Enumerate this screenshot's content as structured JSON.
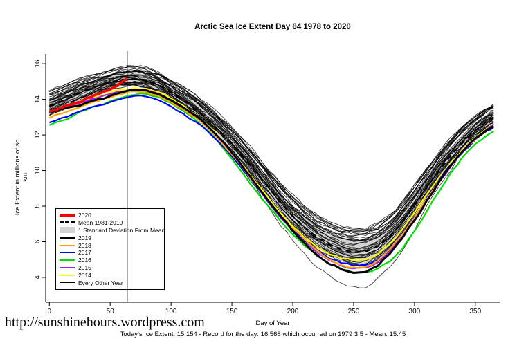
{
  "title": "Arctic Sea Ice Extent Day 64 1978 to 2020",
  "footer": {
    "url": "http://sunshinehours.wordpress.com",
    "status": "Today's Ice Extent: 15.154  - Record for the day: 16.568 which occurred on 1979 3 5  - Mean: 15.45"
  },
  "chart_data": {
    "type": "line",
    "title": "Arctic Sea Ice Extent Day 64 1978 to 2020",
    "xlabel": "Day of Year",
    "ylabel": "Ice Extent in millions of sq. km.",
    "xlim": [
      0,
      365
    ],
    "ylim": [
      2.6,
      16.55
    ],
    "x_ticks": [
      0,
      50,
      100,
      150,
      200,
      250,
      300,
      350
    ],
    "y_ticks": [
      4,
      6,
      8,
      10,
      12,
      14,
      16
    ],
    "grid": false,
    "legend_position": "inside-left-bottom",
    "marker_day": 64,
    "band_color": "#D3D3D3",
    "x": [
      0,
      10,
      20,
      30,
      40,
      50,
      60,
      70,
      80,
      90,
      100,
      110,
      120,
      130,
      140,
      150,
      160,
      170,
      180,
      190,
      200,
      210,
      220,
      230,
      240,
      250,
      260,
      270,
      280,
      290,
      300,
      310,
      320,
      330,
      340,
      350,
      360,
      365
    ],
    "mean_1981_2010": [
      13.6,
      13.9,
      14.2,
      14.5,
      14.75,
      14.95,
      15.1,
      15.15,
      15.05,
      14.8,
      14.4,
      13.95,
      13.45,
      12.85,
      12.2,
      11.5,
      10.7,
      9.9,
      9.05,
      8.2,
      7.45,
      6.8,
      6.25,
      5.85,
      5.55,
      5.4,
      5.45,
      5.75,
      6.3,
      7.1,
      8.05,
      9.05,
      10.0,
      10.85,
      11.6,
      12.25,
      12.8,
      13.0
    ],
    "std": [
      0.4,
      0.4,
      0.38,
      0.36,
      0.35,
      0.35,
      0.35,
      0.35,
      0.35,
      0.35,
      0.35,
      0.36,
      0.38,
      0.4,
      0.42,
      0.45,
      0.48,
      0.5,
      0.52,
      0.55,
      0.57,
      0.58,
      0.6,
      0.62,
      0.63,
      0.65,
      0.65,
      0.62,
      0.6,
      0.58,
      0.55,
      0.52,
      0.5,
      0.48,
      0.45,
      0.42,
      0.4,
      0.4
    ],
    "series": [
      {
        "name": "2020",
        "color": "#FF0000",
        "width": 3.6,
        "x": [
          0,
          4,
          8,
          12,
          16,
          20,
          24,
          28,
          32,
          36,
          40,
          44,
          48,
          52,
          56,
          60,
          64
        ],
        "values": [
          13.3,
          13.4,
          13.5,
          13.6,
          13.7,
          13.75,
          13.85,
          13.95,
          14.1,
          14.2,
          14.3,
          14.4,
          14.5,
          14.65,
          14.8,
          15.0,
          15.154
        ]
      },
      {
        "name": "2019",
        "color": "#000000",
        "width": 3,
        "values": [
          13.25,
          13.45,
          13.6,
          13.8,
          14.0,
          14.2,
          14.4,
          14.55,
          14.5,
          14.3,
          13.95,
          13.55,
          13.1,
          12.5,
          11.8,
          11.0,
          10.1,
          9.2,
          8.3,
          7.45,
          6.6,
          5.9,
          5.25,
          4.75,
          4.45,
          4.25,
          4.3,
          4.65,
          5.35,
          6.2,
          7.2,
          8.3,
          9.35,
          10.3,
          11.1,
          11.8,
          12.3,
          12.5
        ]
      },
      {
        "name": "2018",
        "color": "#FFA500",
        "width": 2.2,
        "values": [
          12.95,
          13.2,
          13.45,
          13.7,
          13.9,
          14.1,
          14.3,
          14.45,
          14.4,
          14.2,
          13.85,
          13.45,
          13.0,
          12.4,
          11.7,
          10.9,
          10.05,
          9.15,
          8.3,
          7.5,
          6.75,
          6.1,
          5.5,
          5.0,
          4.7,
          4.55,
          4.6,
          4.95,
          5.6,
          6.4,
          7.35,
          8.4,
          9.4,
          10.3,
          11.1,
          11.75,
          12.3,
          12.5
        ]
      },
      {
        "name": "2017",
        "color": "#0000FF",
        "width": 2.2,
        "values": [
          12.7,
          12.95,
          13.2,
          13.45,
          13.65,
          13.85,
          14.05,
          14.2,
          14.15,
          13.95,
          13.6,
          13.2,
          12.75,
          12.2,
          11.55,
          10.8,
          9.95,
          9.1,
          8.25,
          7.45,
          6.7,
          6.05,
          5.5,
          5.05,
          4.8,
          4.65,
          4.7,
          5.0,
          5.65,
          6.45,
          7.4,
          8.45,
          9.45,
          10.35,
          11.1,
          11.75,
          12.25,
          12.45
        ]
      },
      {
        "name": "2016",
        "color": "#00DD00",
        "width": 2.2,
        "values": [
          12.55,
          12.8,
          13.1,
          13.4,
          13.65,
          13.9,
          14.1,
          14.25,
          14.3,
          14.15,
          13.8,
          13.35,
          12.85,
          12.25,
          11.5,
          10.65,
          9.75,
          8.85,
          8.0,
          7.15,
          6.4,
          5.75,
          5.2,
          4.75,
          4.45,
          4.25,
          4.3,
          4.5,
          4.9,
          5.6,
          6.6,
          7.7,
          8.8,
          9.9,
          10.8,
          11.5,
          12.0,
          12.2
        ]
      },
      {
        "name": "2015",
        "color": "#A020F0",
        "width": 2.2,
        "values": [
          13.3,
          13.5,
          13.7,
          13.9,
          14.1,
          14.3,
          14.45,
          14.55,
          14.5,
          14.3,
          13.95,
          13.5,
          13.0,
          12.4,
          11.7,
          10.9,
          10.0,
          9.1,
          8.2,
          7.35,
          6.6,
          5.95,
          5.4,
          4.95,
          4.65,
          4.5,
          4.55,
          4.85,
          5.5,
          6.3,
          7.3,
          8.35,
          9.35,
          10.25,
          11.05,
          11.75,
          12.35,
          12.6
        ]
      },
      {
        "name": "2014",
        "color": "#FFFF00",
        "width": 2.2,
        "values": [
          13.35,
          13.55,
          13.75,
          14.0,
          14.2,
          14.4,
          14.55,
          14.65,
          14.6,
          14.4,
          14.05,
          13.65,
          13.15,
          12.55,
          11.85,
          11.05,
          10.2,
          9.3,
          8.45,
          7.6,
          6.85,
          6.2,
          5.7,
          5.3,
          5.05,
          4.95,
          5.0,
          5.3,
          5.9,
          6.7,
          7.65,
          8.65,
          9.6,
          10.45,
          11.2,
          11.85,
          12.4,
          12.6
        ]
      }
    ],
    "background_years": {
      "label": "Every Other Year",
      "count": 36,
      "color": "#000000",
      "width": 0.8,
      "seed": 42,
      "spread_high": 1.0,
      "spread_low": -0.55,
      "outlier_index": 34,
      "outlier_dip": -1.3
    },
    "legend": [
      {
        "label": "2020",
        "swatch": "line",
        "color": "#FF0000",
        "width": 4,
        "dash": ""
      },
      {
        "label": "Mean 1981-2010",
        "swatch": "line",
        "color": "#000000",
        "width": 3,
        "dash": "dashed"
      },
      {
        "label": "1 Standard Deviation From Mean",
        "swatch": "box",
        "color": "#D3D3D3"
      },
      {
        "label": "2019",
        "swatch": "line",
        "color": "#000000",
        "width": 3,
        "dash": ""
      },
      {
        "label": "2018",
        "swatch": "line",
        "color": "#FFA500",
        "width": 2.5,
        "dash": ""
      },
      {
        "label": "2017",
        "swatch": "line",
        "color": "#0000FF",
        "width": 2.5,
        "dash": ""
      },
      {
        "label": "2016",
        "swatch": "line",
        "color": "#00DD00",
        "width": 2.5,
        "dash": ""
      },
      {
        "label": "2015",
        "swatch": "line",
        "color": "#A020F0",
        "width": 2.5,
        "dash": ""
      },
      {
        "label": "2014",
        "swatch": "line",
        "color": "#FFFF00",
        "width": 2.5,
        "dash": ""
      },
      {
        "label": "Every Other Year",
        "swatch": "line",
        "color": "#000000",
        "width": 1,
        "dash": ""
      }
    ]
  }
}
